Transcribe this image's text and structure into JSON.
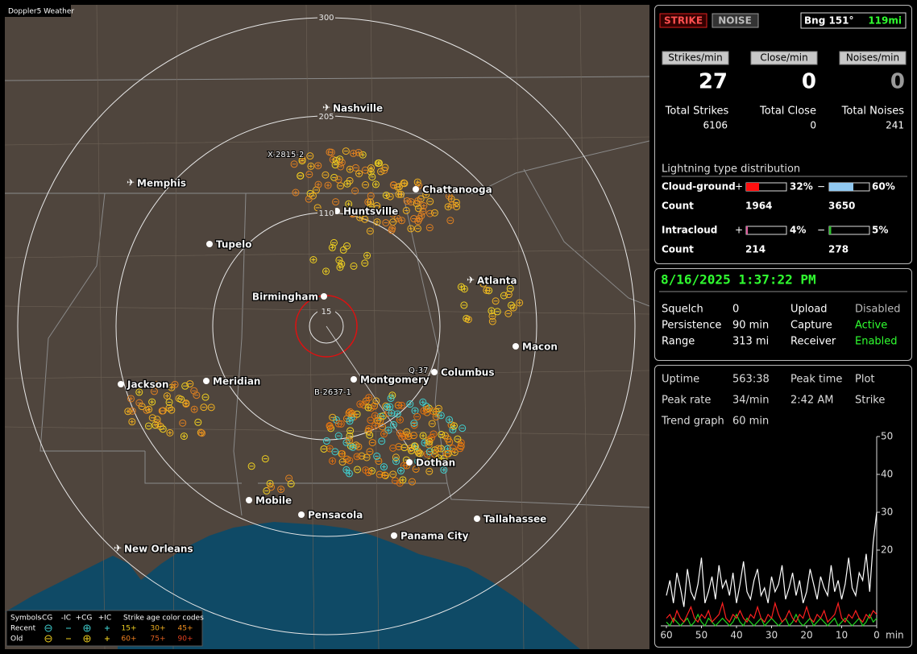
{
  "map": {
    "title": "Doppler5 Weather",
    "ring_labels": [
      300,
      205,
      110,
      15
    ],
    "cities": [
      "Nashville",
      "Memphis",
      "Chattanooga",
      "Huntsville",
      "Tupelo",
      "Birmingham",
      "Atlanta",
      "Macon",
      "Columbus",
      "Montgomery",
      "Jackson",
      "Meridian",
      "Dothan",
      "Mobile",
      "Pensacola",
      "Tallahassee",
      "Panama City",
      "New Orleans"
    ],
    "storm_labels": [
      "X-2815-2",
      "Q-37",
      "B-2637-1"
    ],
    "legend": {
      "symbols_title": "Symbols",
      "symbols": [
        "-CG",
        "-IC",
        "+CG",
        "+IC"
      ],
      "age_title": "Strike age color codes",
      "rows": [
        "Recent",
        "Old"
      ],
      "ages": [
        [
          "15+",
          "30+",
          "45+"
        ],
        [
          "60+",
          "75+",
          "90+"
        ]
      ]
    }
  },
  "status": {
    "strike": "STRIKE",
    "noise": "NOISE",
    "bearing": "Bng 151°",
    "distance": "119mi"
  },
  "rates": {
    "labels": [
      "Strikes/min",
      "Close/min",
      "Noises/min"
    ],
    "values": [
      27,
      0,
      0
    ],
    "total_labels": [
      "Total Strikes",
      "Total Close",
      "Total Noises"
    ],
    "totals": [
      6106,
      0,
      241
    ]
  },
  "distribution": {
    "title": "Lightning type distribution",
    "types": [
      {
        "name": "Cloud-ground",
        "plus_sign": "+",
        "plus": {
          "value": 32,
          "label": "32%"
        },
        "minus_sign": "−",
        "minus": {
          "value": 60,
          "label": "60%"
        },
        "count_label": "Count",
        "counts": [
          1964,
          3650
        ]
      },
      {
        "name": "Intracloud",
        "plus_sign": "+",
        "plus": {
          "value": 4,
          "label": "4%"
        },
        "minus_sign": "−",
        "minus": {
          "value": 5,
          "label": "5%"
        },
        "count_label": "Count",
        "counts": [
          214,
          278
        ]
      }
    ]
  },
  "datetime": "8/16/2025 1:37:22 PM",
  "settings": [
    [
      "Squelch",
      "0",
      "Upload",
      "Disabled"
    ],
    [
      "Persistence",
      "90 min",
      "Capture",
      "Active"
    ],
    [
      "Range",
      "313 mi",
      "Receiver",
      "Enabled"
    ]
  ],
  "stats": [
    [
      "Uptime",
      "563:38",
      "Peak time",
      "Plot"
    ],
    [
      "Peak rate",
      "34/min",
      "2:42 AM",
      "Strike"
    ],
    [
      "Trend graph",
      "60 min"
    ]
  ],
  "trend_chart": {
    "type": "line",
    "x": [
      60,
      59,
      58,
      57,
      56,
      55,
      54,
      53,
      52,
      51,
      50,
      49,
      48,
      47,
      46,
      45,
      44,
      43,
      42,
      41,
      40,
      39,
      38,
      37,
      36,
      35,
      34,
      33,
      32,
      31,
      30,
      29,
      28,
      27,
      26,
      25,
      24,
      23,
      22,
      21,
      20,
      19,
      18,
      17,
      16,
      15,
      14,
      13,
      12,
      11,
      10,
      9,
      8,
      7,
      6,
      5,
      4,
      3,
      2,
      1,
      0
    ],
    "xlim": [
      60,
      0
    ],
    "xticks": [
      60,
      50,
      40,
      30,
      20,
      10,
      0
    ],
    "x_unit": "min",
    "ylim": [
      0,
      50
    ],
    "yticks": [
      20,
      30,
      40,
      50
    ],
    "series": [
      {
        "color": "#ffffff",
        "values": [
          8,
          12,
          6,
          14,
          10,
          5,
          15,
          9,
          7,
          11,
          18,
          6,
          9,
          13,
          7,
          16,
          10,
          12,
          8,
          14,
          6,
          11,
          17,
          9,
          7,
          12,
          15,
          8,
          10,
          6,
          13,
          9,
          11,
          16,
          7,
          10,
          14,
          8,
          12,
          6,
          9,
          15,
          11,
          7,
          13,
          10,
          8,
          16,
          9,
          12,
          7,
          11,
          18,
          10,
          8,
          14,
          12,
          19,
          9,
          22,
          30
        ]
      },
      {
        "color": "#ff2020",
        "values": [
          2,
          3,
          1,
          4,
          2,
          1,
          3,
          5,
          2,
          1,
          3,
          2,
          4,
          1,
          2,
          3,
          6,
          2,
          1,
          3,
          2,
          4,
          2,
          1,
          3,
          2,
          5,
          2,
          1,
          3,
          2,
          6,
          3,
          1,
          2,
          4,
          2,
          1,
          3,
          2,
          5,
          2,
          1,
          3,
          2,
          4,
          1,
          2,
          3,
          6,
          2,
          1,
          3,
          2,
          4,
          2,
          1,
          3,
          2,
          4,
          3
        ]
      },
      {
        "color": "#20d020",
        "values": [
          1,
          0,
          2,
          1,
          0,
          1,
          2,
          0,
          1,
          3,
          1,
          0,
          2,
          1,
          0,
          1,
          2,
          1,
          0,
          1,
          3,
          1,
          0,
          2,
          1,
          0,
          1,
          2,
          0,
          1,
          2,
          1,
          0,
          1,
          2,
          0,
          1,
          3,
          1,
          0,
          1,
          2,
          0,
          1,
          2,
          1,
          0,
          1,
          2,
          0,
          1,
          2,
          1,
          0,
          1,
          2,
          0,
          1,
          3,
          1,
          2
        ]
      }
    ]
  }
}
